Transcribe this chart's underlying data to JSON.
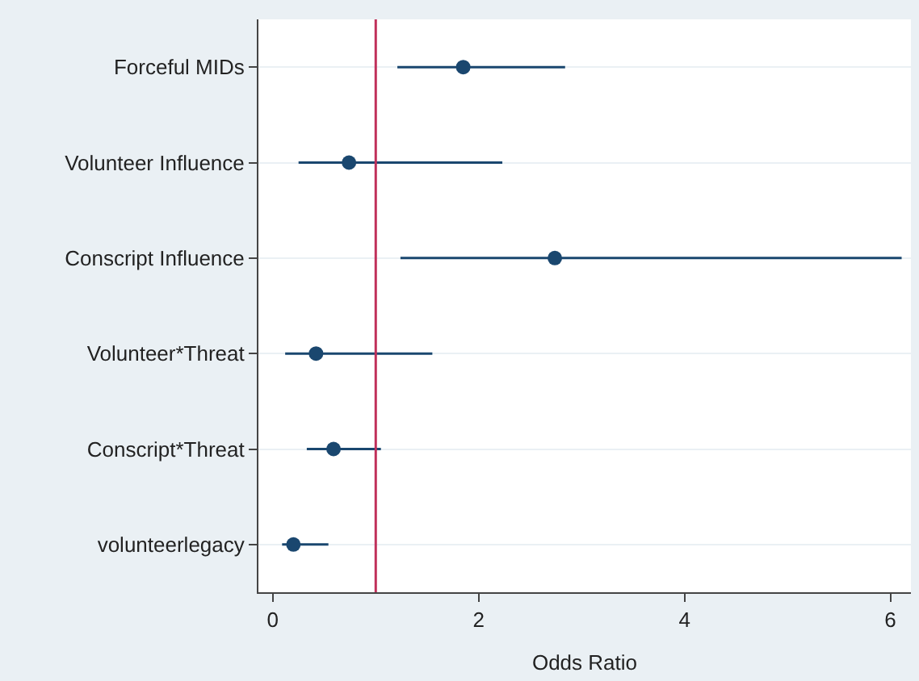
{
  "chart_data": {
    "type": "scatter",
    "orientation": "horizontal",
    "xlabel": "Odds Ratio",
    "categories": [
      "Forceful MIDs",
      "Volunteer Influence",
      "Conscript Influence",
      "Volunteer*Threat",
      "Conscript*Threat",
      "volunteerlegacy"
    ],
    "series": [
      {
        "color": "#1a476f",
        "values": [
          1.85,
          0.74,
          2.74,
          0.42,
          0.59,
          0.2
        ],
        "errors": [
          [
            1.21,
            2.84
          ],
          [
            0.25,
            2.23
          ],
          [
            1.24,
            6.11
          ],
          [
            0.12,
            1.55
          ],
          [
            0.33,
            1.05
          ],
          [
            0.09,
            0.54
          ]
        ]
      }
    ],
    "xlim": [
      -0.14,
      6.2
    ],
    "xticks": [
      0,
      2,
      4,
      6
    ],
    "ref_lines": [
      {
        "axis": "x",
        "value": 1,
        "color": "#c0305a"
      }
    ],
    "grid": "y",
    "marker": "circle"
  }
}
